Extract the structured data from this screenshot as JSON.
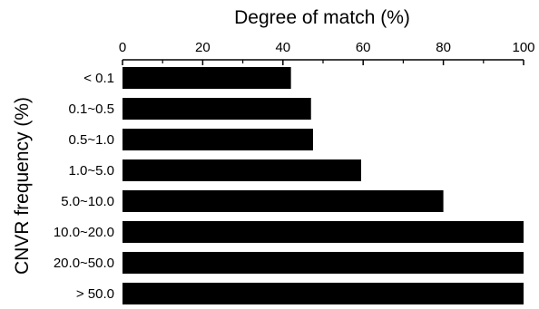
{
  "chart_data": {
    "type": "bar",
    "orientation": "horizontal",
    "title": "",
    "xlabel": "Degree of match (%)",
    "ylabel": "CNVR frequency (%)",
    "xlim": [
      0,
      100
    ],
    "x_ticks": [
      0,
      20,
      40,
      60,
      80,
      100
    ],
    "x_tick_labels": [
      "0",
      "20",
      "40",
      "60",
      "80",
      "100"
    ],
    "x_axis_position": "top",
    "grid": false,
    "categories": [
      "< 0.1",
      "0.1~0.5",
      "0.5~1.0",
      "1.0~5.0",
      "5.0~10.0",
      "10.0~20.0",
      "20.0~50.0",
      "> 50.0"
    ],
    "values": [
      42,
      47,
      47.5,
      59.5,
      80,
      100,
      100,
      100
    ],
    "bar_color": "#000000"
  }
}
